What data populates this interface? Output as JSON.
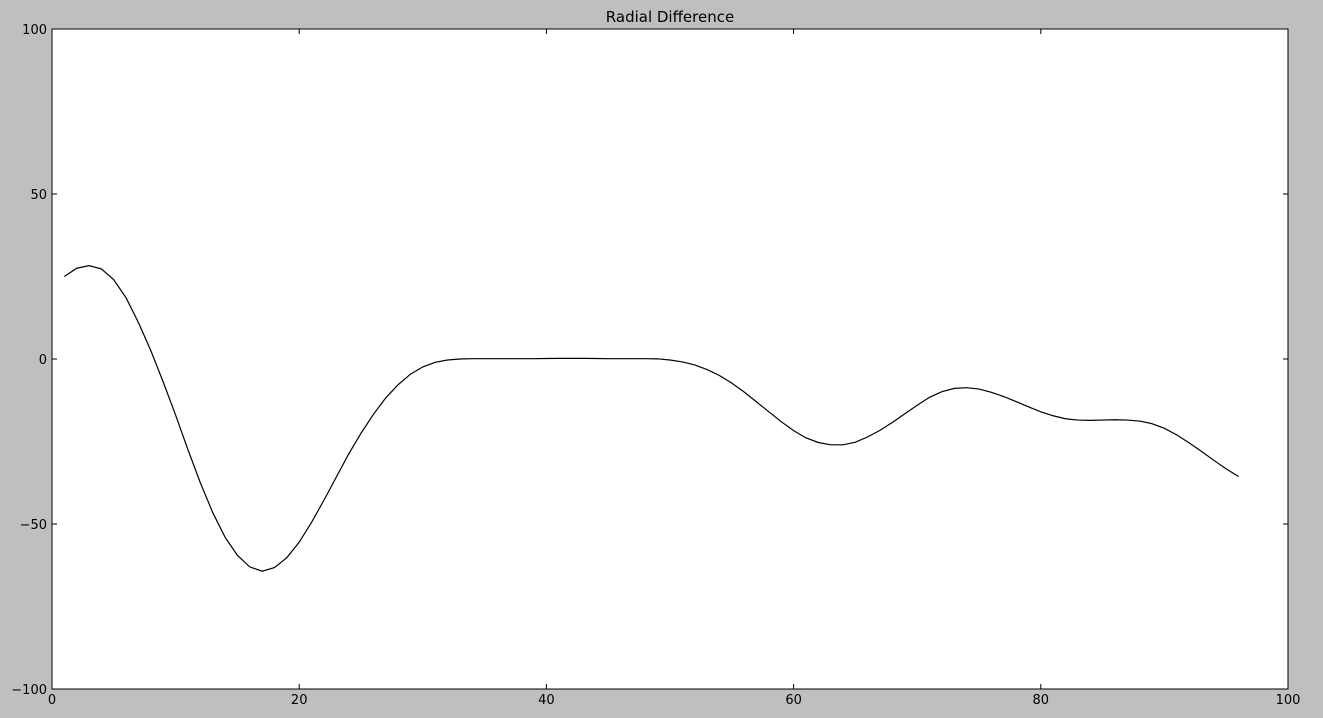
{
  "chart_data": {
    "type": "line",
    "title": "Radial Difference",
    "xlabel": "",
    "ylabel": "",
    "xlim": [
      0,
      100
    ],
    "ylim": [
      -100,
      100
    ],
    "x_ticks": [
      0,
      20,
      40,
      60,
      80,
      100
    ],
    "y_ticks": [
      -100,
      -50,
      0,
      50,
      100
    ],
    "grid": false,
    "line_color": "#000000",
    "series": [
      {
        "x": [
          1,
          2,
          3,
          4,
          5,
          6,
          7,
          8,
          9,
          10,
          11,
          12,
          13,
          14,
          15,
          16,
          17,
          18,
          19,
          20,
          21,
          22,
          23,
          24,
          25,
          26,
          27,
          28,
          29,
          30,
          31,
          32,
          33,
          34,
          35,
          36,
          37,
          38,
          39,
          40,
          41,
          42,
          43,
          44,
          45,
          46,
          47,
          48,
          49,
          50,
          51,
          52,
          53,
          54,
          55,
          56,
          57,
          58,
          59,
          60,
          61,
          62,
          63,
          64,
          65,
          66,
          67,
          68,
          69,
          70,
          71,
          72,
          73,
          74,
          75,
          76,
          77,
          78,
          79,
          80,
          81,
          82,
          83,
          84,
          85,
          86,
          87,
          88,
          89,
          90,
          91,
          92,
          93,
          94,
          95,
          96
        ],
        "y": [
          25,
          27.5,
          28.3,
          27.3,
          24,
          18.5,
          11,
          2.5,
          -7,
          -17,
          -27.5,
          -37.5,
          -46.5,
          -54,
          -59.5,
          -63,
          -64.3,
          -63.2,
          -60.2,
          -55.5,
          -49.5,
          -42.8,
          -35.8,
          -28.8,
          -22.5,
          -16.8,
          -11.8,
          -7.8,
          -4.6,
          -2.4,
          -1.0,
          -0.3,
          0,
          0.1,
          0.1,
          0.1,
          0.1,
          0.1,
          0.1,
          0.15,
          0.2,
          0.2,
          0.2,
          0.15,
          0.1,
          0.1,
          0.1,
          0.1,
          0.05,
          -0.3,
          -0.9,
          -1.8,
          -3.2,
          -5,
          -7.3,
          -10,
          -13,
          -16,
          -19,
          -21.7,
          -23.9,
          -25.3,
          -26,
          -26,
          -25.2,
          -23.6,
          -21.6,
          -19.2,
          -16.6,
          -14,
          -11.6,
          -9.9,
          -8.9,
          -8.7,
          -9.1,
          -10.1,
          -11.4,
          -12.9,
          -14.5,
          -16.0,
          -17.2,
          -18.1,
          -18.5,
          -18.6,
          -18.5,
          -18.4,
          -18.5,
          -18.8,
          -19.6,
          -21.0,
          -23.0,
          -25.4,
          -28.0,
          -30.7,
          -33.3,
          -35.6
        ]
      }
    ]
  }
}
